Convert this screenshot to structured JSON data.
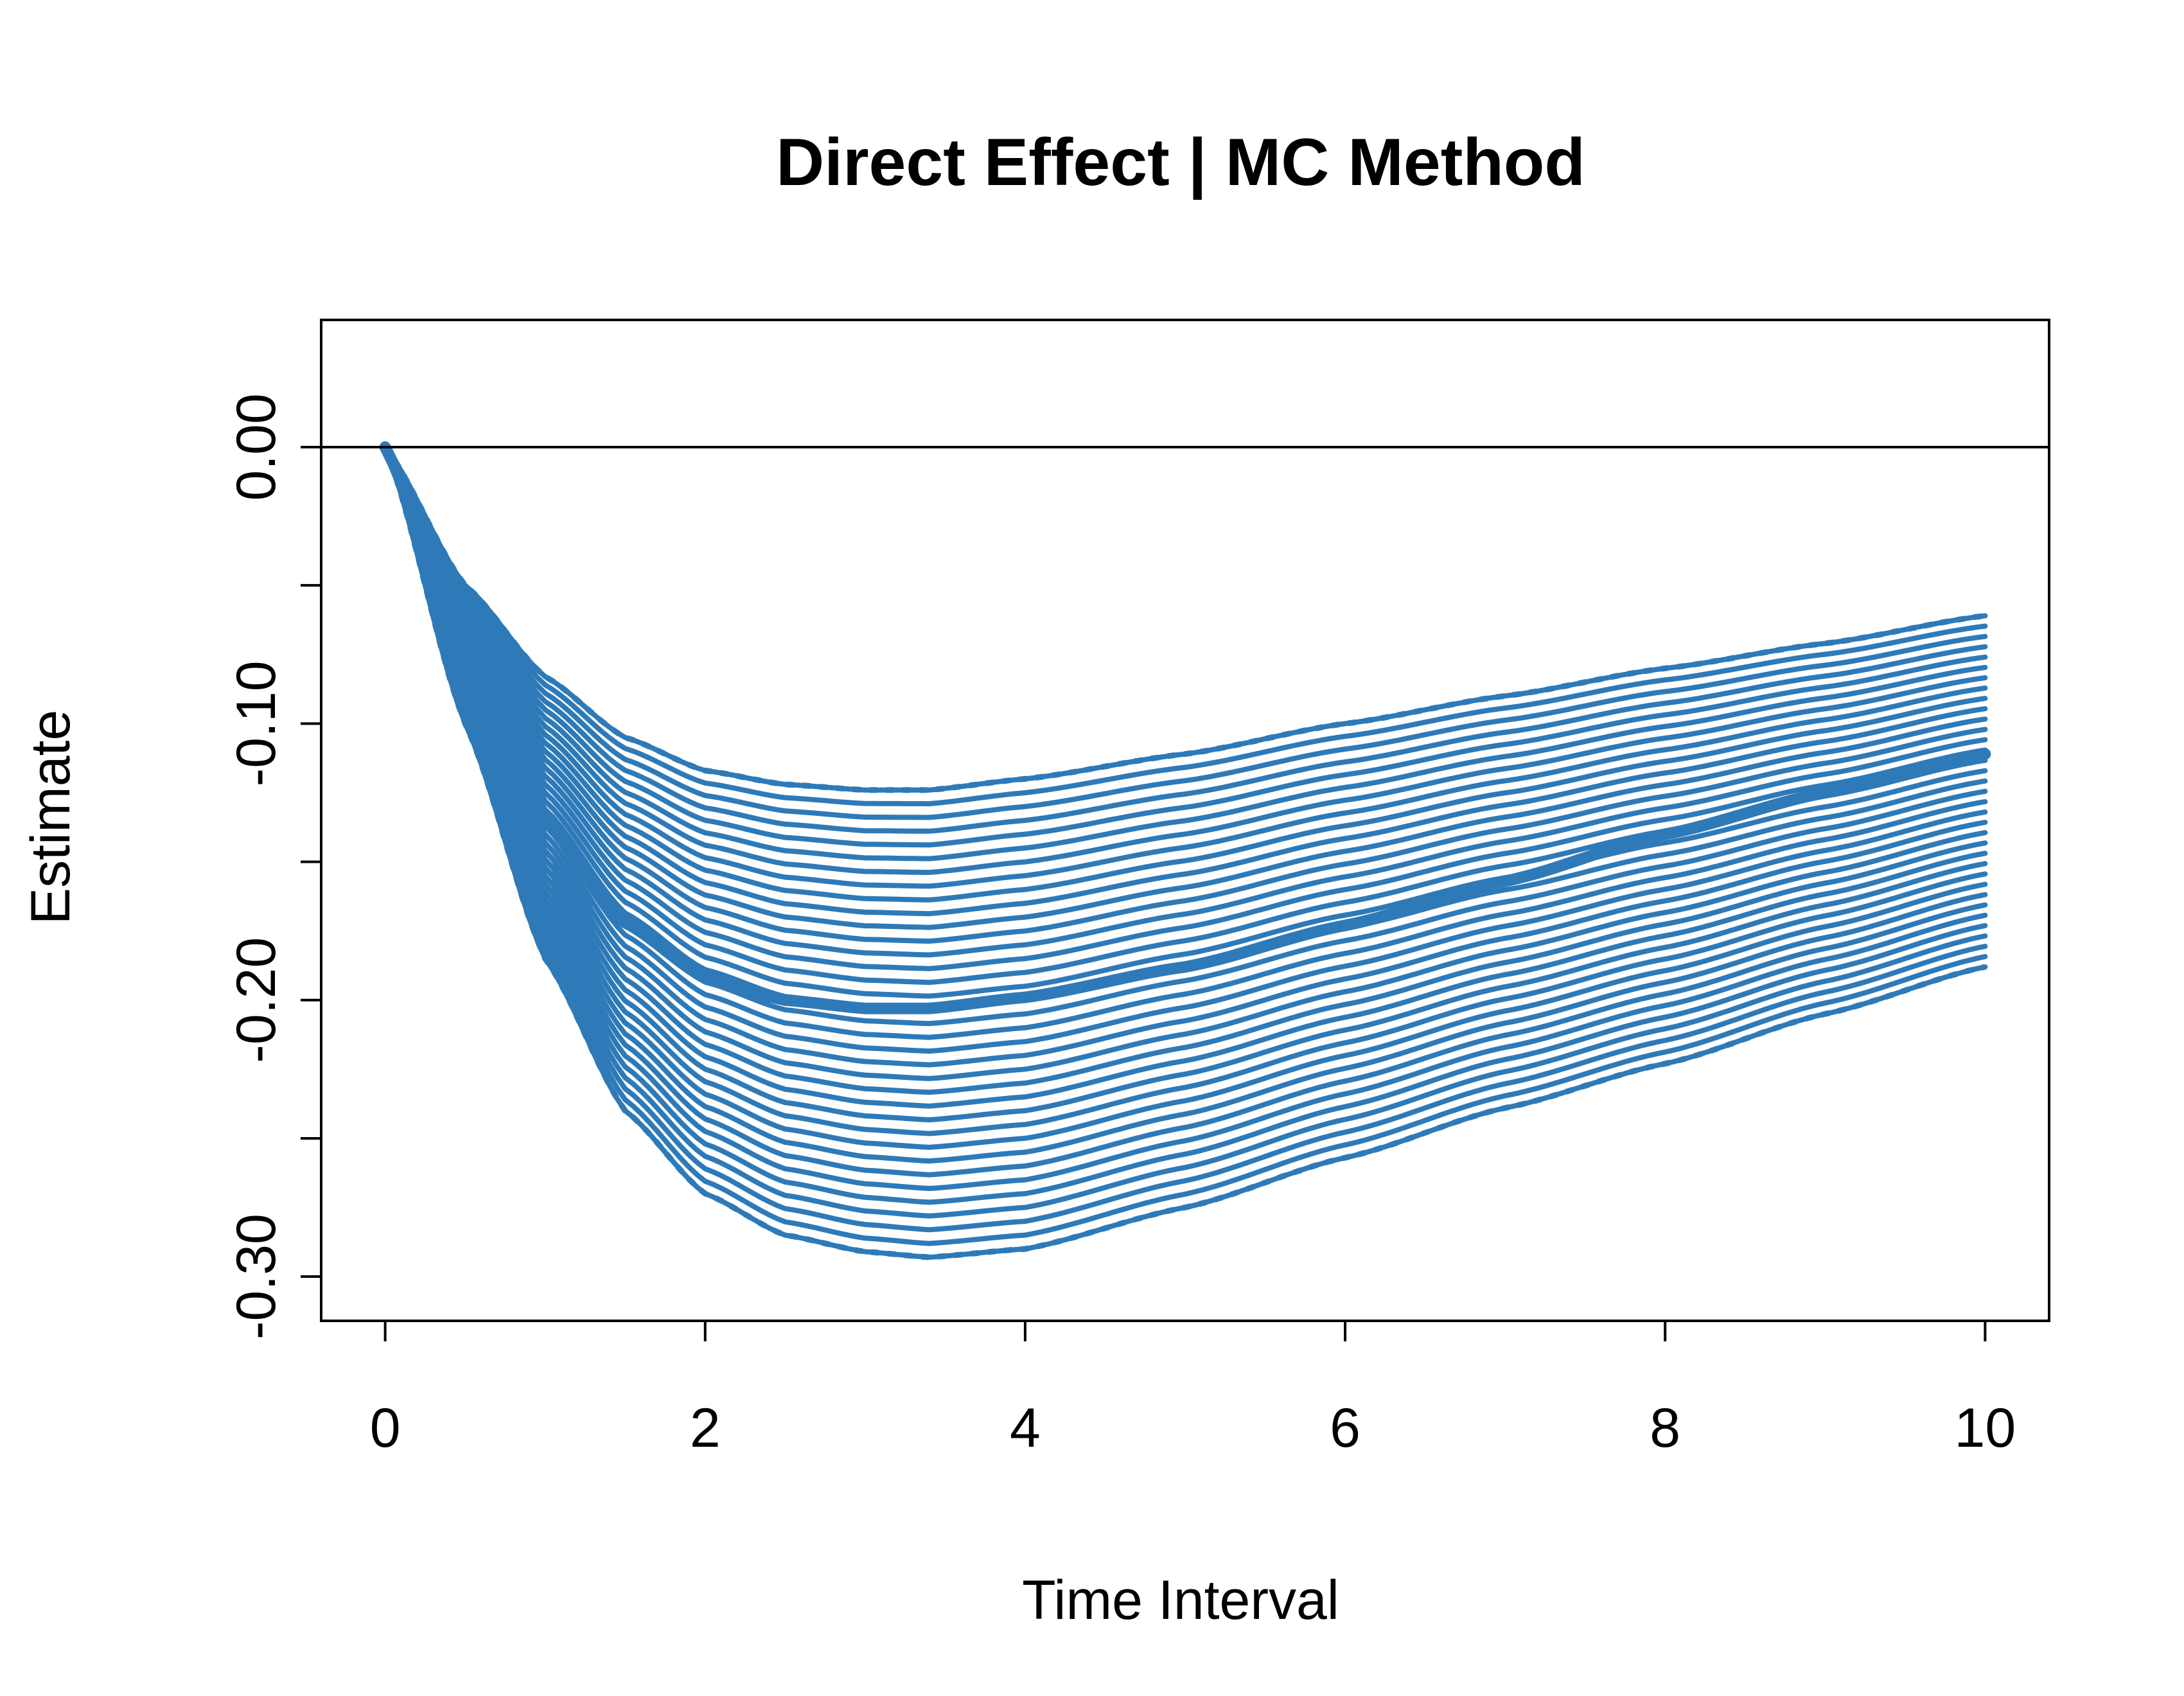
{
  "chart_data": {
    "type": "line",
    "title": "Direct Effect | MC Method",
    "xlabel": "Time Interval",
    "ylabel": "Estimate",
    "xlim": [
      -0.4,
      10.4
    ],
    "ylim": [
      -0.316,
      0.046
    ],
    "x_ticks": [
      0,
      2,
      4,
      6,
      8,
      10
    ],
    "x_tick_labels": [
      "0",
      "2",
      "4",
      "6",
      "8",
      "10"
    ],
    "y_ticks": [
      0.0,
      -0.05,
      -0.1,
      -0.15,
      -0.2,
      -0.25,
      -0.3
    ],
    "y_tick_labels": [
      "0.00",
      "",
      "-0.10",
      "",
      "-0.20",
      "",
      "-0.30"
    ],
    "reference_line": {
      "y": 0
    },
    "line_color": "#2E7AB8",
    "series": [
      {
        "style": "thick-solid",
        "x": [
          0,
          0.5,
          1,
          1.5,
          2,
          2.5,
          3,
          3.4,
          4,
          5,
          6,
          7,
          8,
          9,
          10
        ],
        "y": [
          0,
          -0.075,
          -0.135,
          -0.172,
          -0.192,
          -0.2,
          -0.203,
          -0.203,
          -0.199,
          -0.188,
          -0.173,
          -0.157,
          -0.14,
          -0.125,
          -0.111
        ]
      },
      {
        "style": "dotted-upper",
        "x": [
          0,
          0.5,
          1,
          1.5,
          2,
          2.5,
          3,
          3.4,
          4,
          5,
          6,
          7,
          8,
          9,
          10
        ],
        "y": [
          0,
          -0.05,
          -0.083,
          -0.105,
          -0.117,
          -0.122,
          -0.124,
          -0.124,
          -0.12,
          -0.111,
          -0.1,
          -0.09,
          -0.08,
          -0.071,
          -0.061
        ]
      },
      {
        "style": "dotted-lower",
        "x": [
          0,
          0.5,
          1,
          1.5,
          2,
          2.5,
          3,
          3.4,
          4,
          5,
          6,
          7,
          8,
          9,
          10
        ],
        "y": [
          0,
          -0.1,
          -0.185,
          -0.24,
          -0.27,
          -0.285,
          -0.291,
          -0.293,
          -0.29,
          -0.275,
          -0.257,
          -0.239,
          -0.223,
          -0.205,
          -0.188
        ]
      }
    ],
    "band_line_count": 35
  }
}
